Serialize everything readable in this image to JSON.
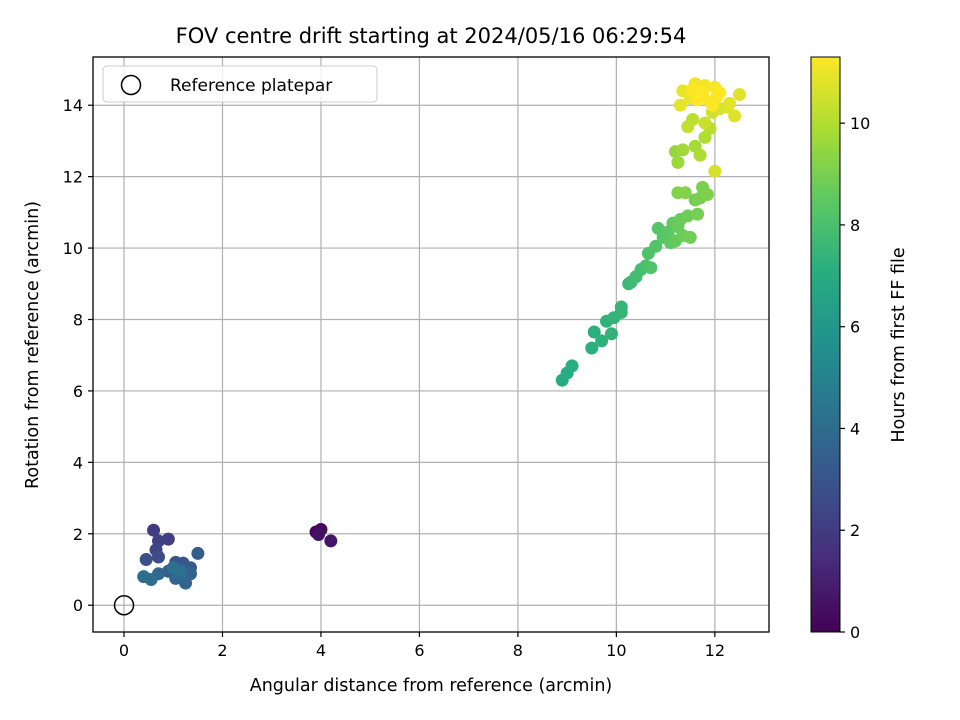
{
  "chart_data": {
    "type": "scatter",
    "title": "FOV centre drift starting at 2024/05/16 06:29:54",
    "xlabel": "Angular distance from reference (arcmin)",
    "ylabel": "Rotation from reference (arcmin)",
    "xlim": [
      -0.63,
      13.1
    ],
    "ylim": [
      -0.75,
      15.35
    ],
    "xticks": [
      0,
      2,
      4,
      6,
      8,
      10,
      12
    ],
    "yticks": [
      0,
      2,
      4,
      6,
      8,
      10,
      12,
      14
    ],
    "grid": true,
    "legend": {
      "placement": "upper-left",
      "entries": [
        "Reference platepar"
      ]
    },
    "reference": {
      "x": 0,
      "y": 0
    },
    "colorbar": {
      "label": "Hours from first FF file",
      "colormap": "viridis",
      "range": [
        0,
        11.3
      ],
      "ticks": [
        0,
        2,
        4,
        6,
        8,
        10
      ]
    },
    "points": [
      [
        3.9,
        2.05,
        0.1
      ],
      [
        4.0,
        2.12,
        0.3
      ],
      [
        3.95,
        1.98,
        0.5
      ],
      [
        4.2,
        1.8,
        0.7
      ],
      [
        0.6,
        2.1,
        2.0
      ],
      [
        0.9,
        1.85,
        2.1
      ],
      [
        0.7,
        1.8,
        2.2
      ],
      [
        0.65,
        1.55,
        2.4
      ],
      [
        0.7,
        1.35,
        2.6
      ],
      [
        0.45,
        1.28,
        2.8
      ],
      [
        1.05,
        1.2,
        3.0
      ],
      [
        1.2,
        1.18,
        3.1
      ],
      [
        1.35,
        1.05,
        3.2
      ],
      [
        1.5,
        1.45,
        3.3
      ],
      [
        0.9,
        0.95,
        3.4
      ],
      [
        1.1,
        0.85,
        3.5
      ],
      [
        1.35,
        0.88,
        3.6
      ],
      [
        1.25,
        0.62,
        3.7
      ],
      [
        1.05,
        0.75,
        3.8
      ],
      [
        0.7,
        0.88,
        3.9
      ],
      [
        0.55,
        0.72,
        4.0
      ],
      [
        0.4,
        0.8,
        4.1
      ],
      [
        1.15,
        0.95,
        4.2
      ],
      [
        1.0,
        1.05,
        4.3
      ],
      [
        8.9,
        6.3,
        7.0
      ],
      [
        9.0,
        6.5,
        7.05
      ],
      [
        9.1,
        6.7,
        7.1
      ],
      [
        9.5,
        7.2,
        7.15
      ],
      [
        9.55,
        7.65,
        7.2
      ],
      [
        9.7,
        7.4,
        7.25
      ],
      [
        9.8,
        7.95,
        7.3
      ],
      [
        9.9,
        7.6,
        7.35
      ],
      [
        9.95,
        8.05,
        7.4
      ],
      [
        10.1,
        8.2,
        7.45
      ],
      [
        10.1,
        8.35,
        7.5
      ],
      [
        10.25,
        9.0,
        7.6
      ],
      [
        10.3,
        9.05,
        7.7
      ],
      [
        10.4,
        9.2,
        7.8
      ],
      [
        10.5,
        9.4,
        7.9
      ],
      [
        10.6,
        9.5,
        8.0
      ],
      [
        10.65,
        9.85,
        8.1
      ],
      [
        10.7,
        9.45,
        8.15
      ],
      [
        10.8,
        10.05,
        8.2
      ],
      [
        10.85,
        10.55,
        8.3
      ],
      [
        10.95,
        10.3,
        8.35
      ],
      [
        11.05,
        10.45,
        8.4
      ],
      [
        11.1,
        10.15,
        8.5
      ],
      [
        11.15,
        10.7,
        8.55
      ],
      [
        11.2,
        10.2,
        8.6
      ],
      [
        11.25,
        10.6,
        8.65
      ],
      [
        11.3,
        10.8,
        8.7
      ],
      [
        11.35,
        10.35,
        8.75
      ],
      [
        11.45,
        10.9,
        8.8
      ],
      [
        11.5,
        10.3,
        8.85
      ],
      [
        11.6,
        11.35,
        8.9
      ],
      [
        11.65,
        10.95,
        8.95
      ],
      [
        11.7,
        11.4,
        9.0
      ],
      [
        11.75,
        11.7,
        9.05
      ],
      [
        11.85,
        11.5,
        9.1
      ],
      [
        11.25,
        11.55,
        9.15
      ],
      [
        11.4,
        11.55,
        9.2
      ],
      [
        11.2,
        12.7,
        9.5
      ],
      [
        11.25,
        12.4,
        9.6
      ],
      [
        11.35,
        12.75,
        9.7
      ],
      [
        11.6,
        12.85,
        9.8
      ],
      [
        11.7,
        12.6,
        9.9
      ],
      [
        11.8,
        13.1,
        10.0
      ],
      [
        11.9,
        13.35,
        10.1
      ],
      [
        11.55,
        13.6,
        10.2
      ],
      [
        11.45,
        13.4,
        10.3
      ],
      [
        11.8,
        13.5,
        10.4
      ],
      [
        11.95,
        13.8,
        10.5
      ],
      [
        12.0,
        12.15,
        10.6
      ],
      [
        12.1,
        13.9,
        10.65
      ],
      [
        12.25,
        13.95,
        10.7
      ],
      [
        12.4,
        13.7,
        10.75
      ],
      [
        12.5,
        14.3,
        10.8
      ],
      [
        12.3,
        14.05,
        10.85
      ],
      [
        11.3,
        14.0,
        10.9
      ],
      [
        11.35,
        14.4,
        10.95
      ],
      [
        11.5,
        14.2,
        11.0
      ],
      [
        11.6,
        14.6,
        11.05
      ],
      [
        11.7,
        14.3,
        11.1
      ],
      [
        11.8,
        14.55,
        11.15
      ],
      [
        11.9,
        14.1,
        11.2
      ],
      [
        12.0,
        14.5,
        11.22
      ],
      [
        12.05,
        14.25,
        11.25
      ],
      [
        11.55,
        14.45,
        11.28
      ],
      [
        11.75,
        14.35,
        11.3
      ],
      [
        11.95,
        14.0,
        11.3
      ],
      [
        12.1,
        14.35,
        11.3
      ],
      [
        11.65,
        14.15,
        11.3
      ]
    ]
  }
}
